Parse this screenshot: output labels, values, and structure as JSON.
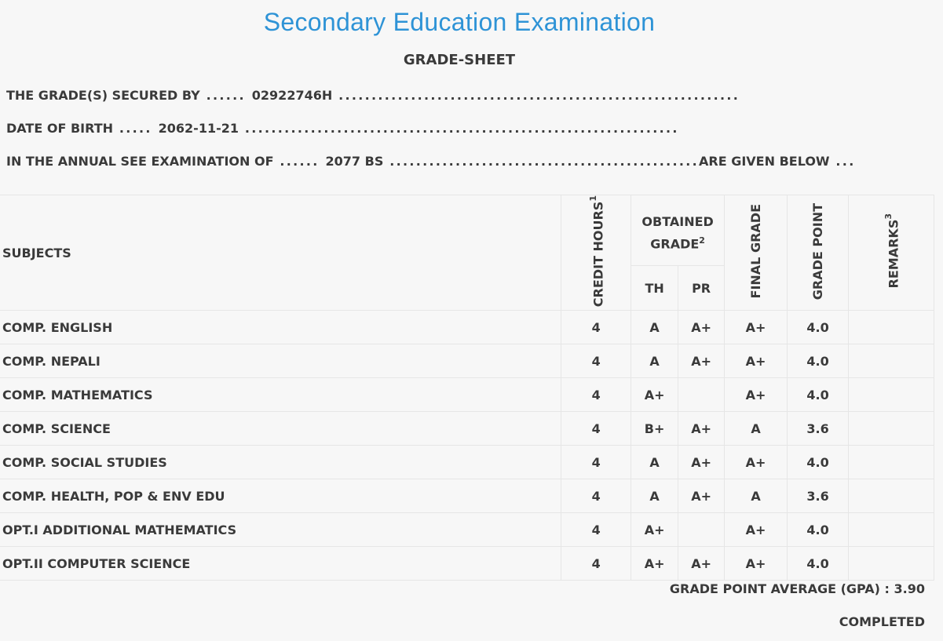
{
  "header": {
    "title": "Secondary Education Examination",
    "subtitle": "GRADE-SHEET"
  },
  "info": {
    "secured_by_label": "THE GRADE(S) SECURED BY",
    "secured_by_value": "02922746H",
    "dob_label": "DATE OF BIRTH",
    "dob_value": "2062-11-21",
    "exam_label": "IN THE ANNUAL SEE EXAMINATION OF",
    "exam_value": "2077 BS",
    "exam_suffix": "ARE GIVEN BELOW"
  },
  "table": {
    "headers": {
      "subjects": "SUBJECTS",
      "credit_hours": "CREDIT HOURS",
      "credit_hours_sup": "1",
      "obtained_grade": "OBTAINED GRADE",
      "obtained_grade_sup": "2",
      "th": "TH",
      "pr": "PR",
      "final_grade": "FINAL GRADE",
      "grade_point": "GRADE POINT",
      "remarks": "REMARKS",
      "remarks_sup": "3"
    },
    "rows": [
      {
        "subject": "COMP. ENGLISH",
        "credit": "4",
        "th": "A",
        "pr": "A+",
        "final": "A+",
        "point": "4.0",
        "remarks": ""
      },
      {
        "subject": "COMP. NEPALI",
        "credit": "4",
        "th": "A",
        "pr": "A+",
        "final": "A+",
        "point": "4.0",
        "remarks": ""
      },
      {
        "subject": "COMP. MATHEMATICS",
        "credit": "4",
        "th": "A+",
        "pr": "",
        "final": "A+",
        "point": "4.0",
        "remarks": ""
      },
      {
        "subject": "COMP. SCIENCE",
        "credit": "4",
        "th": "B+",
        "pr": "A+",
        "final": "A",
        "point": "3.6",
        "remarks": ""
      },
      {
        "subject": "COMP. SOCIAL STUDIES",
        "credit": "4",
        "th": "A",
        "pr": "A+",
        "final": "A+",
        "point": "4.0",
        "remarks": ""
      },
      {
        "subject": "COMP. HEALTH, POP & ENV EDU",
        "credit": "4",
        "th": "A",
        "pr": "A+",
        "final": "A",
        "point": "3.6",
        "remarks": ""
      },
      {
        "subject": "OPT.I ADDITIONAL MATHEMATICS",
        "credit": "4",
        "th": "A+",
        "pr": "",
        "final": "A+",
        "point": "4.0",
        "remarks": ""
      },
      {
        "subject": "OPT.II COMPUTER SCIENCE",
        "credit": "4",
        "th": "A+",
        "pr": "A+",
        "final": "A+",
        "point": "4.0",
        "remarks": ""
      }
    ]
  },
  "summary": {
    "gpa_label": "GRADE POINT AVERAGE (GPA) : 3.90",
    "status": "COMPLETED"
  },
  "colors": {
    "title": "#2e93d6",
    "text": "#3a3a3a",
    "background": "#f7f7f7",
    "border": "#e6e6e6"
  }
}
